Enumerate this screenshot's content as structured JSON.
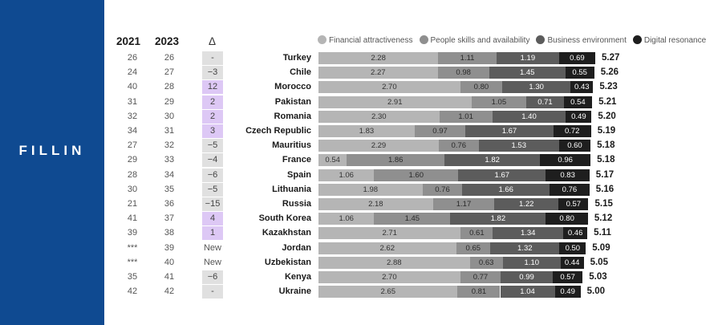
{
  "brand": {
    "logo_text": "FILLIN"
  },
  "headers": {
    "y2021": "2021",
    "y2023": "2023",
    "delta": "Δ"
  },
  "colors": {
    "sidebar": "#0f4a91",
    "financial": "#b5b5b5",
    "people": "#8f8f8f",
    "business": "#5c5c5c",
    "digital": "#1e1e1e",
    "delta_negative": "#e0e0e0",
    "delta_positive": "#ddc8f5"
  },
  "legend": [
    {
      "label": "Financial attractiveness",
      "color": "#b5b5b5"
    },
    {
      "label": "People skills and availability",
      "color": "#8f8f8f"
    },
    {
      "label": "Business environment",
      "color": "#5c5c5c"
    },
    {
      "label": "Digital resonance",
      "color": "#1e1e1e"
    }
  ],
  "chart_data": {
    "type": "bar",
    "orientation": "horizontal",
    "stacked": true,
    "title": "",
    "xlim": [
      0,
      5.27
    ],
    "series_names": [
      "Financial attractiveness",
      "People skills and availability",
      "Business environment",
      "Digital resonance"
    ],
    "rows": [
      {
        "rank_2021": "26",
        "rank_2023": "26",
        "delta": "-",
        "country": "Turkey",
        "values": [
          2.28,
          1.11,
          1.19,
          0.69
        ],
        "labels": [
          "2.28",
          "1.11",
          "1.19",
          "0.69"
        ],
        "total": "5.27"
      },
      {
        "rank_2021": "24",
        "rank_2023": "27",
        "delta": "−3",
        "country": "Chile",
        "values": [
          2.27,
          0.98,
          1.45,
          0.55
        ],
        "labels": [
          "2.27",
          "0.98",
          "1.45",
          "0.55"
        ],
        "total": "5.26"
      },
      {
        "rank_2021": "40",
        "rank_2023": "28",
        "delta": "12",
        "country": "Morocco",
        "values": [
          2.7,
          0.8,
          1.3,
          0.43
        ],
        "labels": [
          "2.70",
          "0.80",
          "1.30",
          "0.43"
        ],
        "total": "5.23"
      },
      {
        "rank_2021": "31",
        "rank_2023": "29",
        "delta": "2",
        "country": "Pakistan",
        "values": [
          2.91,
          1.05,
          0.71,
          0.54
        ],
        "labels": [
          "2.91",
          "1.05",
          "0.71",
          "0.54"
        ],
        "total": "5.21"
      },
      {
        "rank_2021": "32",
        "rank_2023": "30",
        "delta": "2",
        "country": "Romania",
        "values": [
          2.3,
          1.01,
          1.4,
          0.49
        ],
        "labels": [
          "2.30",
          "1.01",
          "1.40",
          "0.49"
        ],
        "total": "5.20"
      },
      {
        "rank_2021": "34",
        "rank_2023": "31",
        "delta": "3",
        "country": "Czech Republic",
        "values": [
          1.83,
          0.97,
          1.67,
          0.72
        ],
        "labels": [
          "1.83",
          "0.97",
          "1.67",
          "0.72"
        ],
        "total": "5.19"
      },
      {
        "rank_2021": "27",
        "rank_2023": "32",
        "delta": "−5",
        "country": "Mauritius",
        "values": [
          2.29,
          0.76,
          1.53,
          0.6
        ],
        "labels": [
          "2.29",
          "0.76",
          "1.53",
          "0.60"
        ],
        "total": "5.18"
      },
      {
        "rank_2021": "29",
        "rank_2023": "33",
        "delta": "−4",
        "country": "France",
        "values": [
          0.54,
          1.86,
          1.82,
          0.96
        ],
        "labels": [
          "0.54",
          "1.86",
          "1.82",
          "0.96"
        ],
        "total": "5.18"
      },
      {
        "rank_2021": "28",
        "rank_2023": "34",
        "delta": "−6",
        "country": "Spain",
        "values": [
          1.06,
          1.6,
          1.67,
          0.83
        ],
        "labels": [
          "1.06",
          "1.60",
          "1.67",
          "0.83"
        ],
        "total": "5.17"
      },
      {
        "rank_2021": "30",
        "rank_2023": "35",
        "delta": "−5",
        "country": "Lithuania",
        "values": [
          1.98,
          0.76,
          1.66,
          0.76
        ],
        "labels": [
          "1.98",
          "0.76",
          "1.66",
          "0.76"
        ],
        "total": "5.16"
      },
      {
        "rank_2021": "21",
        "rank_2023": "36",
        "delta": "−15",
        "country": "Russia",
        "values": [
          2.18,
          1.17,
          1.22,
          0.57
        ],
        "labels": [
          "2.18",
          "1.17",
          "1.22",
          "0.57"
        ],
        "total": "5.15"
      },
      {
        "rank_2021": "41",
        "rank_2023": "37",
        "delta": "4",
        "country": "South Korea",
        "values": [
          1.06,
          1.45,
          1.82,
          0.8
        ],
        "labels": [
          "1.06",
          "1.45",
          "1.82",
          "0.80"
        ],
        "total": "5.12"
      },
      {
        "rank_2021": "39",
        "rank_2023": "38",
        "delta": "1",
        "country": "Kazakhstan",
        "values": [
          2.71,
          0.61,
          1.34,
          0.46
        ],
        "labels": [
          "2.71",
          "0.61",
          "1.34",
          "0.46"
        ],
        "total": "5.11"
      },
      {
        "rank_2021": "***",
        "rank_2023": "39",
        "delta": "New",
        "country": "Jordan",
        "values": [
          2.62,
          0.65,
          1.32,
          0.5
        ],
        "labels": [
          "2.62",
          "0.65",
          "1.32",
          "0.50"
        ],
        "total": "5.09"
      },
      {
        "rank_2021": "***",
        "rank_2023": "40",
        "delta": "New",
        "country": "Uzbekistan",
        "values": [
          2.88,
          0.63,
          1.1,
          0.44
        ],
        "labels": [
          "2.88",
          "0.63",
          "1.10",
          "0.44"
        ],
        "total": "5.05"
      },
      {
        "rank_2021": "35",
        "rank_2023": "41",
        "delta": "−6",
        "country": "Kenya",
        "values": [
          2.7,
          0.77,
          0.99,
          0.57
        ],
        "labels": [
          "2.70",
          "0.77",
          "0.99",
          "0.57"
        ],
        "total": "5.03"
      },
      {
        "rank_2021": "42",
        "rank_2023": "42",
        "delta": "-",
        "country": "Ukraine",
        "values": [
          2.65,
          0.81,
          1.04,
          0.49
        ],
        "labels": [
          "2.65",
          "0.81",
          "1.04",
          "0.49"
        ],
        "total": "5.00"
      }
    ]
  }
}
